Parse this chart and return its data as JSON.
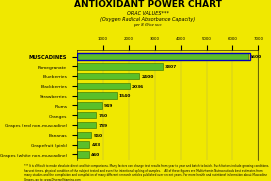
{
  "title": "ANTIOXIDANT POWER CHART",
  "subtitle1": "ORAC VALUES***",
  "subtitle2": "(Oxygen Radical Absorbance Capacity)",
  "subtitle3": "per 8 fl/oz svc",
  "background_color": "#f0e800",
  "chart_bg": "#f0e800",
  "bar_color": "#5abf2a",
  "bar_edge_color": "#2d6e00",
  "muscadine_box_color": "#0000bb",
  "categories": [
    "MUSCADINES",
    "Pomegranate",
    "Blueberries",
    "Blackberries",
    "Strawberries",
    "Plums",
    "Oranges",
    "Grapes (red non-muscadine)",
    "Bananas",
    "Grapefruit (pink)",
    "Grapes (white non-muscadine)"
  ],
  "values": [
    6600,
    3307,
    2400,
    2036,
    1540,
    949,
    750,
    739,
    550,
    483,
    460
  ],
  "xlim": [
    0,
    7000
  ],
  "xticks": [
    1000,
    2000,
    3000,
    4000,
    5000,
    6000,
    7000
  ],
  "title_fontsize": 6.5,
  "subtitle_fontsize": 3.5,
  "label_fontsize": 3.2,
  "value_fontsize": 3.2,
  "footnote_fontsize": 2.0,
  "tick_fontsize": 2.8
}
